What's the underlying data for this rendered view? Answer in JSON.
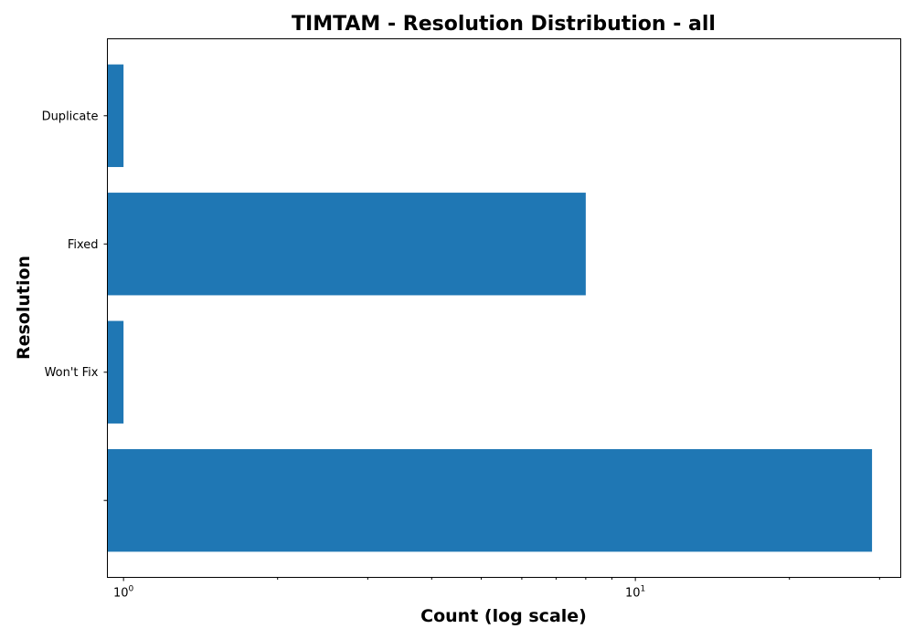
{
  "chart_data": {
    "type": "bar",
    "orientation": "horizontal",
    "title": "TIMTAM - Resolution Distribution - all",
    "xlabel": "Count (log scale)",
    "ylabel": "Resolution",
    "x_scale": "log",
    "xlim": [
      0.93,
      33
    ],
    "categories": [
      "",
      "Won't Fix",
      "Fixed",
      "Duplicate"
    ],
    "values": [
      29,
      1,
      8,
      1
    ],
    "x_major_ticks": [
      {
        "base": "10",
        "exp": "0",
        "value": 1
      },
      {
        "base": "10",
        "exp": "1",
        "value": 10
      }
    ],
    "x_minor_ticks": [
      2,
      3,
      4,
      5,
      6,
      7,
      8,
      9,
      20,
      30
    ],
    "bar_color": "#1f77b4",
    "grid": false,
    "legend": "none"
  }
}
